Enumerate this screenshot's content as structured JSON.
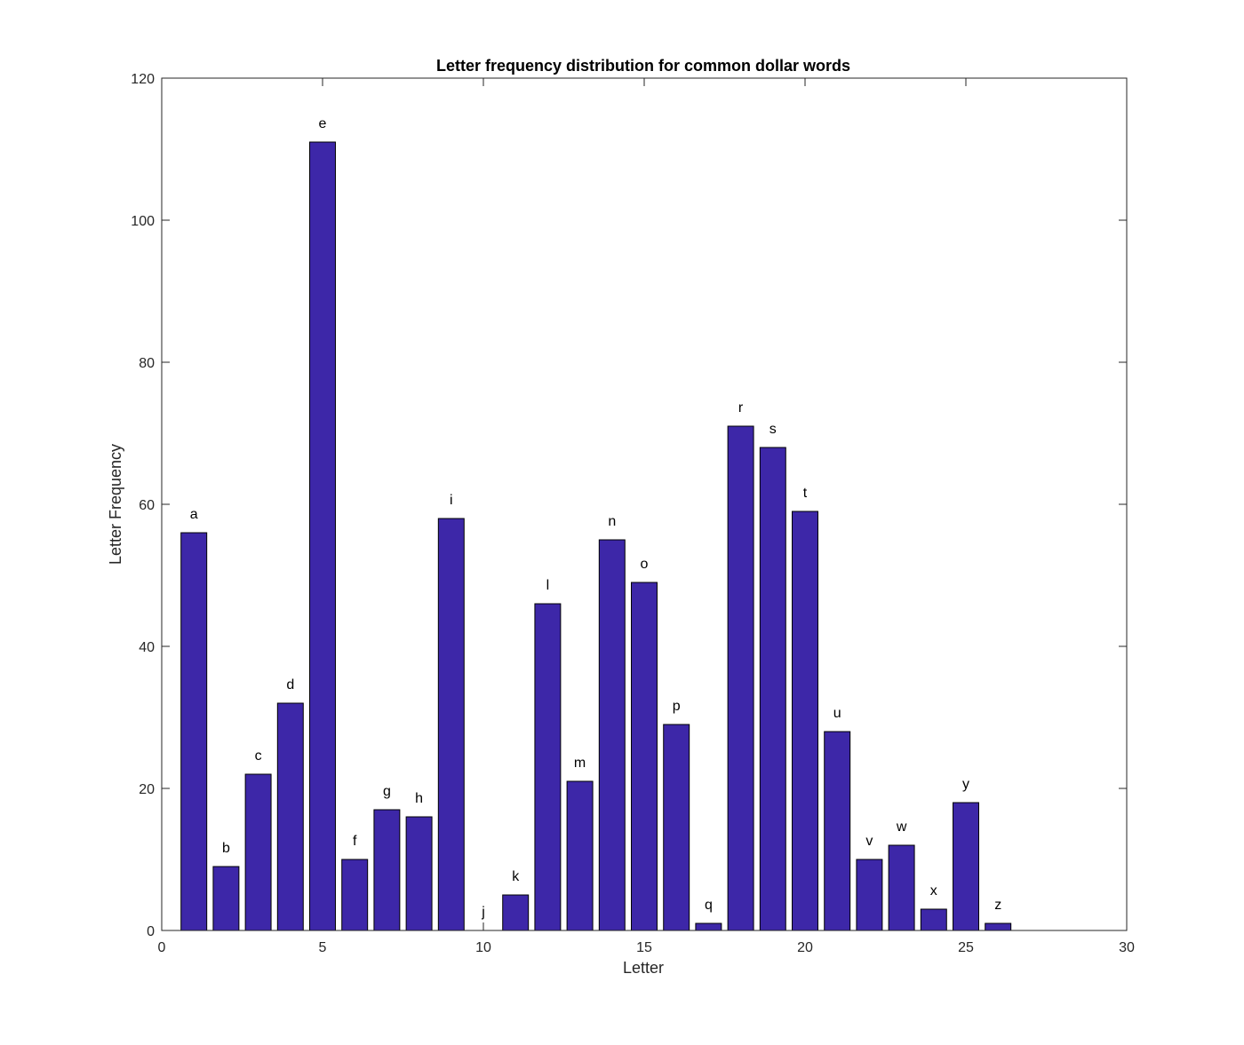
{
  "chart_data": {
    "type": "bar",
    "title": "Letter frequency distribution for common dollar words",
    "xlabel": "Letter",
    "ylabel": "Letter Frequency",
    "xlim": [
      0,
      30
    ],
    "ylim": [
      0,
      120
    ],
    "xticks": [
      0,
      5,
      10,
      15,
      20,
      25,
      30
    ],
    "yticks": [
      0,
      20,
      40,
      60,
      80,
      100,
      120
    ],
    "grid": false,
    "bar_color": "#3d27a8",
    "x": [
      1,
      2,
      3,
      4,
      5,
      6,
      7,
      8,
      9,
      10,
      11,
      12,
      13,
      14,
      15,
      16,
      17,
      18,
      19,
      20,
      21,
      22,
      23,
      24,
      25,
      26
    ],
    "labels": [
      "a",
      "b",
      "c",
      "d",
      "e",
      "f",
      "g",
      "h",
      "i",
      "j",
      "k",
      "l",
      "m",
      "n",
      "o",
      "p",
      "q",
      "r",
      "s",
      "t",
      "u",
      "v",
      "w",
      "x",
      "y",
      "z"
    ],
    "values": [
      56,
      9,
      22,
      32,
      111,
      10,
      17,
      16,
      58,
      0,
      5,
      46,
      21,
      55,
      49,
      29,
      1,
      71,
      68,
      59,
      28,
      10,
      12,
      3,
      18,
      1
    ]
  }
}
